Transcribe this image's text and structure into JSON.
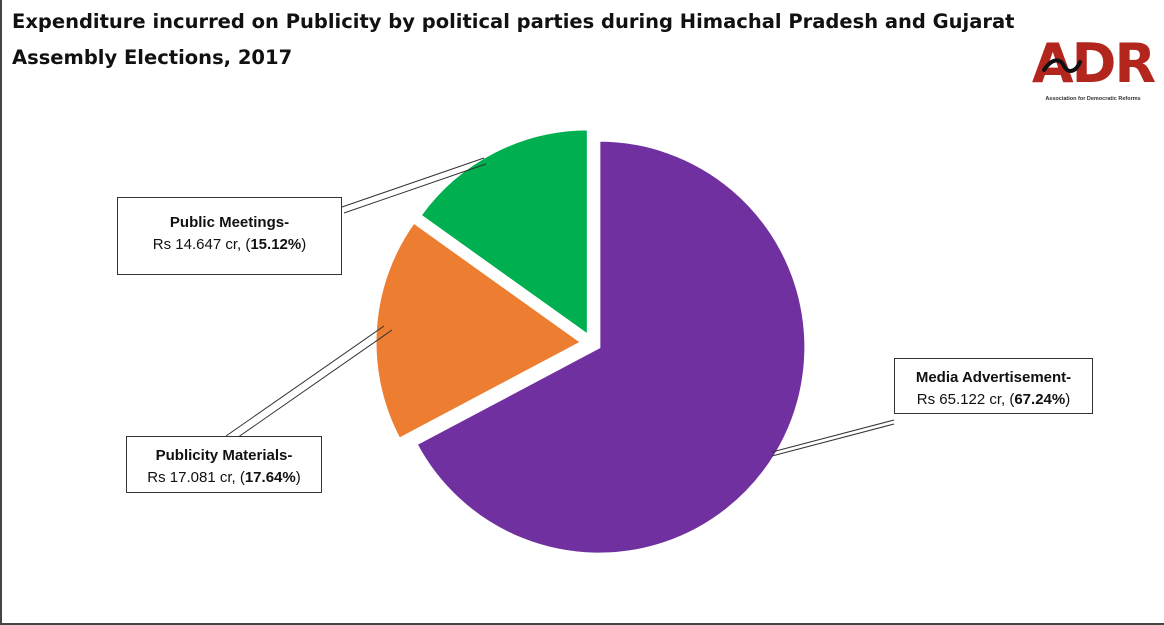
{
  "chart_data": {
    "type": "pie",
    "title": "Expenditure incurred on Publicity by political parties during Himachal Pradesh and Gujarat Assembly Elections, 2017",
    "slices": [
      {
        "label": "Media Advertisement-",
        "amount": "Rs 65.122 cr,",
        "percent_text": "67.24%",
        "value": 65.122,
        "percent": 67.24,
        "color": "#7030a0"
      },
      {
        "label": "Publicity Materials-",
        "amount": "Rs 17.081 cr,",
        "percent_text": "17.64%",
        "value": 17.081,
        "percent": 17.64,
        "color": "#ed7d31"
      },
      {
        "label": "Public Meetings-",
        "amount": "Rs 14.647 cr,",
        "percent_text": "15.12%",
        "value": 14.647,
        "percent": 15.12,
        "color": "#00b050"
      }
    ]
  },
  "logo": {
    "text": "ADR",
    "subtitle": "Association for Democratic Reforms",
    "color": "#b3261e"
  }
}
